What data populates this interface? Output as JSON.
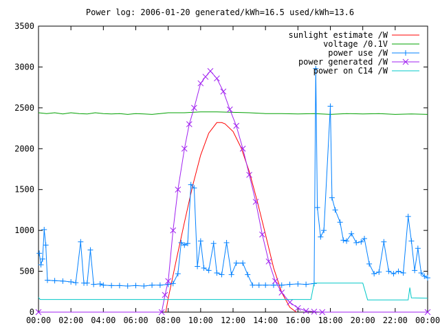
{
  "chart_data": {
    "type": "line",
    "title": "Power log: 2006-01-20 generated/kWh=16.5 used/kWh=13.6",
    "xlabel": "",
    "ylabel": "",
    "xlim": [
      0,
      24
    ],
    "ylim": [
      0,
      3500
    ],
    "x_ticks": [
      "00:00",
      "02:00",
      "04:00",
      "06:00",
      "08:00",
      "10:00",
      "12:00",
      "14:00",
      "16:00",
      "18:00",
      "20:00",
      "22:00",
      "00:00"
    ],
    "y_ticks": [
      0,
      500,
      1000,
      1500,
      2000,
      2500,
      3000,
      3500
    ],
    "grid": false,
    "legend_position": "top-right",
    "series": [
      {
        "name": "sunlight estimate /W",
        "color": "#ff0000",
        "marker": "line",
        "points": [
          [
            7.85,
            0
          ],
          [
            8.0,
            170
          ],
          [
            8.5,
            640
          ],
          [
            9.0,
            1100
          ],
          [
            9.5,
            1540
          ],
          [
            10.0,
            1920
          ],
          [
            10.5,
            2190
          ],
          [
            11.0,
            2320
          ],
          [
            11.3,
            2320
          ],
          [
            11.5,
            2305
          ],
          [
            12.0,
            2210
          ],
          [
            12.5,
            2010
          ],
          [
            13.0,
            1720
          ],
          [
            13.5,
            1350
          ],
          [
            14.0,
            950
          ],
          [
            14.5,
            540
          ],
          [
            15.0,
            240
          ],
          [
            15.5,
            60
          ],
          [
            15.9,
            0
          ]
        ]
      },
      {
        "name": "voltage /0.1V",
        "color": "#00a000",
        "marker": "line",
        "points": [
          [
            0,
            2440
          ],
          [
            0.5,
            2430
          ],
          [
            1,
            2440
          ],
          [
            1.5,
            2425
          ],
          [
            2,
            2440
          ],
          [
            2.5,
            2430
          ],
          [
            3,
            2425
          ],
          [
            3.5,
            2440
          ],
          [
            4,
            2430
          ],
          [
            4.5,
            2425
          ],
          [
            5,
            2430
          ],
          [
            5.5,
            2420
          ],
          [
            6,
            2430
          ],
          [
            6.5,
            2425
          ],
          [
            7,
            2420
          ],
          [
            7.5,
            2430
          ],
          [
            8,
            2440
          ],
          [
            9,
            2440
          ],
          [
            10,
            2450
          ],
          [
            11,
            2450
          ],
          [
            12,
            2445
          ],
          [
            13,
            2440
          ],
          [
            14,
            2430
          ],
          [
            15,
            2430
          ],
          [
            16,
            2425
          ],
          [
            17,
            2430
          ],
          [
            18,
            2420
          ],
          [
            19,
            2430
          ],
          [
            20,
            2425
          ],
          [
            21,
            2430
          ],
          [
            22,
            2420
          ],
          [
            23,
            2425
          ],
          [
            24,
            2420
          ]
        ]
      },
      {
        "name": "power use /W",
        "color": "#0080ff",
        "marker": "plus",
        "points": [
          [
            0.05,
            720
          ],
          [
            0.15,
            580
          ],
          [
            0.25,
            650
          ],
          [
            0.35,
            1010
          ],
          [
            0.45,
            820
          ],
          [
            0.55,
            390
          ],
          [
            1.0,
            385
          ],
          [
            1.5,
            380
          ],
          [
            2.0,
            370
          ],
          [
            2.3,
            360
          ],
          [
            2.6,
            860
          ],
          [
            2.8,
            355
          ],
          [
            3.0,
            355
          ],
          [
            3.2,
            760
          ],
          [
            3.4,
            340
          ],
          [
            3.8,
            345
          ],
          [
            4.0,
            330
          ],
          [
            4.5,
            325
          ],
          [
            5.0,
            325
          ],
          [
            5.5,
            320
          ],
          [
            6.0,
            325
          ],
          [
            6.5,
            320
          ],
          [
            7.0,
            330
          ],
          [
            7.5,
            330
          ],
          [
            8.0,
            340
          ],
          [
            8.3,
            350
          ],
          [
            8.6,
            470
          ],
          [
            8.8,
            850
          ],
          [
            9.0,
            820
          ],
          [
            9.2,
            840
          ],
          [
            9.4,
            1560
          ],
          [
            9.6,
            1520
          ],
          [
            9.8,
            560
          ],
          [
            10.0,
            870
          ],
          [
            10.2,
            540
          ],
          [
            10.5,
            510
          ],
          [
            10.8,
            840
          ],
          [
            11.0,
            480
          ],
          [
            11.3,
            460
          ],
          [
            11.6,
            850
          ],
          [
            11.9,
            460
          ],
          [
            12.2,
            600
          ],
          [
            12.6,
            600
          ],
          [
            12.9,
            460
          ],
          [
            13.2,
            330
          ],
          [
            13.6,
            330
          ],
          [
            14.0,
            330
          ],
          [
            14.5,
            330
          ],
          [
            15.0,
            330
          ],
          [
            15.5,
            340
          ],
          [
            16.0,
            345
          ],
          [
            16.5,
            340
          ],
          [
            17.0,
            350
          ],
          [
            17.1,
            2980
          ],
          [
            17.2,
            1280
          ],
          [
            17.4,
            920
          ],
          [
            17.6,
            1000
          ],
          [
            18.0,
            2520
          ],
          [
            18.1,
            1400
          ],
          [
            18.3,
            1250
          ],
          [
            18.6,
            1100
          ],
          [
            18.8,
            880
          ],
          [
            19.0,
            870
          ],
          [
            19.3,
            960
          ],
          [
            19.6,
            850
          ],
          [
            19.9,
            860
          ],
          [
            20.1,
            900
          ],
          [
            20.4,
            590
          ],
          [
            20.7,
            470
          ],
          [
            21.0,
            490
          ],
          [
            21.3,
            860
          ],
          [
            21.6,
            500
          ],
          [
            21.9,
            470
          ],
          [
            22.2,
            500
          ],
          [
            22.5,
            480
          ],
          [
            22.8,
            1170
          ],
          [
            23.0,
            870
          ],
          [
            23.2,
            510
          ],
          [
            23.4,
            780
          ],
          [
            23.6,
            480
          ],
          [
            23.8,
            440
          ],
          [
            24.0,
            420
          ]
        ]
      },
      {
        "name": "power generated /W",
        "color": "#a020f0",
        "marker": "cross",
        "points": [
          [
            0,
            0
          ],
          [
            7.6,
            0
          ],
          [
            7.8,
            210
          ],
          [
            8.0,
            380
          ],
          [
            8.3,
            1000
          ],
          [
            8.6,
            1500
          ],
          [
            9.0,
            2000
          ],
          [
            9.3,
            2300
          ],
          [
            9.6,
            2500
          ],
          [
            10.0,
            2800
          ],
          [
            10.3,
            2880
          ],
          [
            10.6,
            2950
          ],
          [
            11.0,
            2860
          ],
          [
            11.4,
            2700
          ],
          [
            11.8,
            2480
          ],
          [
            12.2,
            2280
          ],
          [
            12.6,
            2000
          ],
          [
            13.0,
            1680
          ],
          [
            13.4,
            1350
          ],
          [
            13.8,
            950
          ],
          [
            14.2,
            620
          ],
          [
            14.6,
            380
          ],
          [
            15.0,
            240
          ],
          [
            15.5,
            120
          ],
          [
            16.0,
            50
          ],
          [
            16.5,
            15
          ],
          [
            17.0,
            5
          ],
          [
            17.5,
            0
          ],
          [
            24.0,
            0
          ]
        ]
      },
      {
        "name": "power on C14 /W",
        "color": "#00c8c8",
        "marker": "line",
        "points": [
          [
            0,
            180
          ],
          [
            0.1,
            155
          ],
          [
            5,
            155
          ],
          [
            10,
            155
          ],
          [
            15,
            155
          ],
          [
            16.8,
            155
          ],
          [
            17.0,
            355
          ],
          [
            20.0,
            355
          ],
          [
            20.3,
            150
          ],
          [
            22.8,
            150
          ],
          [
            22.9,
            300
          ],
          [
            23.0,
            175
          ],
          [
            24,
            170
          ]
        ]
      }
    ]
  }
}
